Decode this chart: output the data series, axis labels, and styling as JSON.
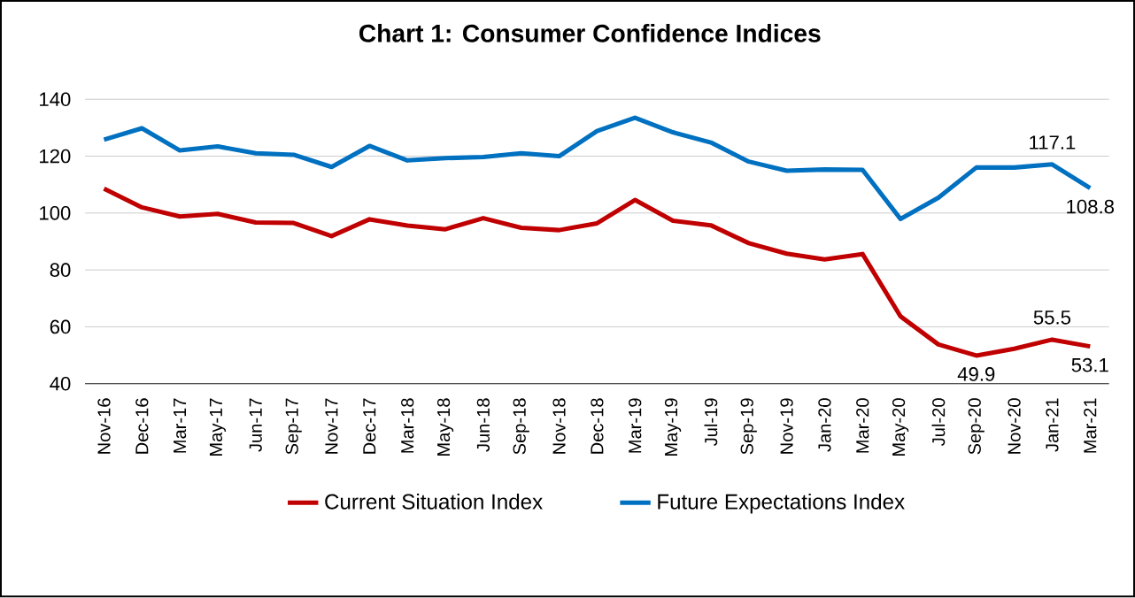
{
  "chart_data": {
    "type": "line",
    "title": "Chart 1: Consumer Confidence Indices",
    "categories": [
      "Nov-16",
      "Dec-16",
      "Mar-17",
      "May-17",
      "Jun-17",
      "Sep-17",
      "Nov-17",
      "Dec-17",
      "Mar-18",
      "May-18",
      "Jun-18",
      "Sep-18",
      "Nov-18",
      "Dec-18",
      "Mar-19",
      "May-19",
      "Jul-19",
      "Sep-19",
      "Nov-19",
      "Jan-20",
      "Mar-20",
      "May-20",
      "Jul-20",
      "Sep-20",
      "Nov-20",
      "Jan-21",
      "Mar-21"
    ],
    "series": [
      {
        "name": "Current Situation Index",
        "color": "#c00000",
        "values": [
          108.6,
          102,
          98.8,
          99.7,
          96.7,
          96.5,
          91.9,
          97.8,
          95.6,
          94.3,
          98.2,
          94.8,
          94,
          96.4,
          104.6,
          97.3,
          95.7,
          89.4,
          85.7,
          83.7,
          85.6,
          63.7,
          53.8,
          49.9,
          52.3,
          55.5,
          53.1
        ],
        "value_labels": [
          null,
          null,
          null,
          null,
          null,
          null,
          null,
          null,
          null,
          null,
          null,
          null,
          null,
          null,
          null,
          null,
          null,
          null,
          null,
          null,
          null,
          null,
          null,
          "49.9",
          null,
          "55.5",
          "53.1"
        ]
      },
      {
        "name": "Future Expectations Index",
        "color": "#0070c0",
        "values": [
          125.8,
          129.8,
          122,
          123.4,
          121,
          120.5,
          116.2,
          123.6,
          118.5,
          119.3,
          119.7,
          121,
          120,
          128.8,
          133.5,
          128.4,
          124.8,
          118.1,
          114.9,
          115.3,
          115.2,
          97.9,
          105.4,
          116,
          116,
          117.1,
          108.8
        ],
        "value_labels": [
          null,
          null,
          null,
          null,
          null,
          null,
          null,
          null,
          null,
          null,
          null,
          null,
          null,
          null,
          null,
          null,
          null,
          null,
          null,
          null,
          null,
          null,
          null,
          null,
          null,
          "117.1",
          "108.8"
        ]
      }
    ],
    "ylim": [
      40,
      140
    ],
    "yticks": [
      40,
      60,
      80,
      100,
      120,
      140
    ],
    "grid": "y",
    "legend": "bottom",
    "marker": "none",
    "line_style": "solid"
  }
}
